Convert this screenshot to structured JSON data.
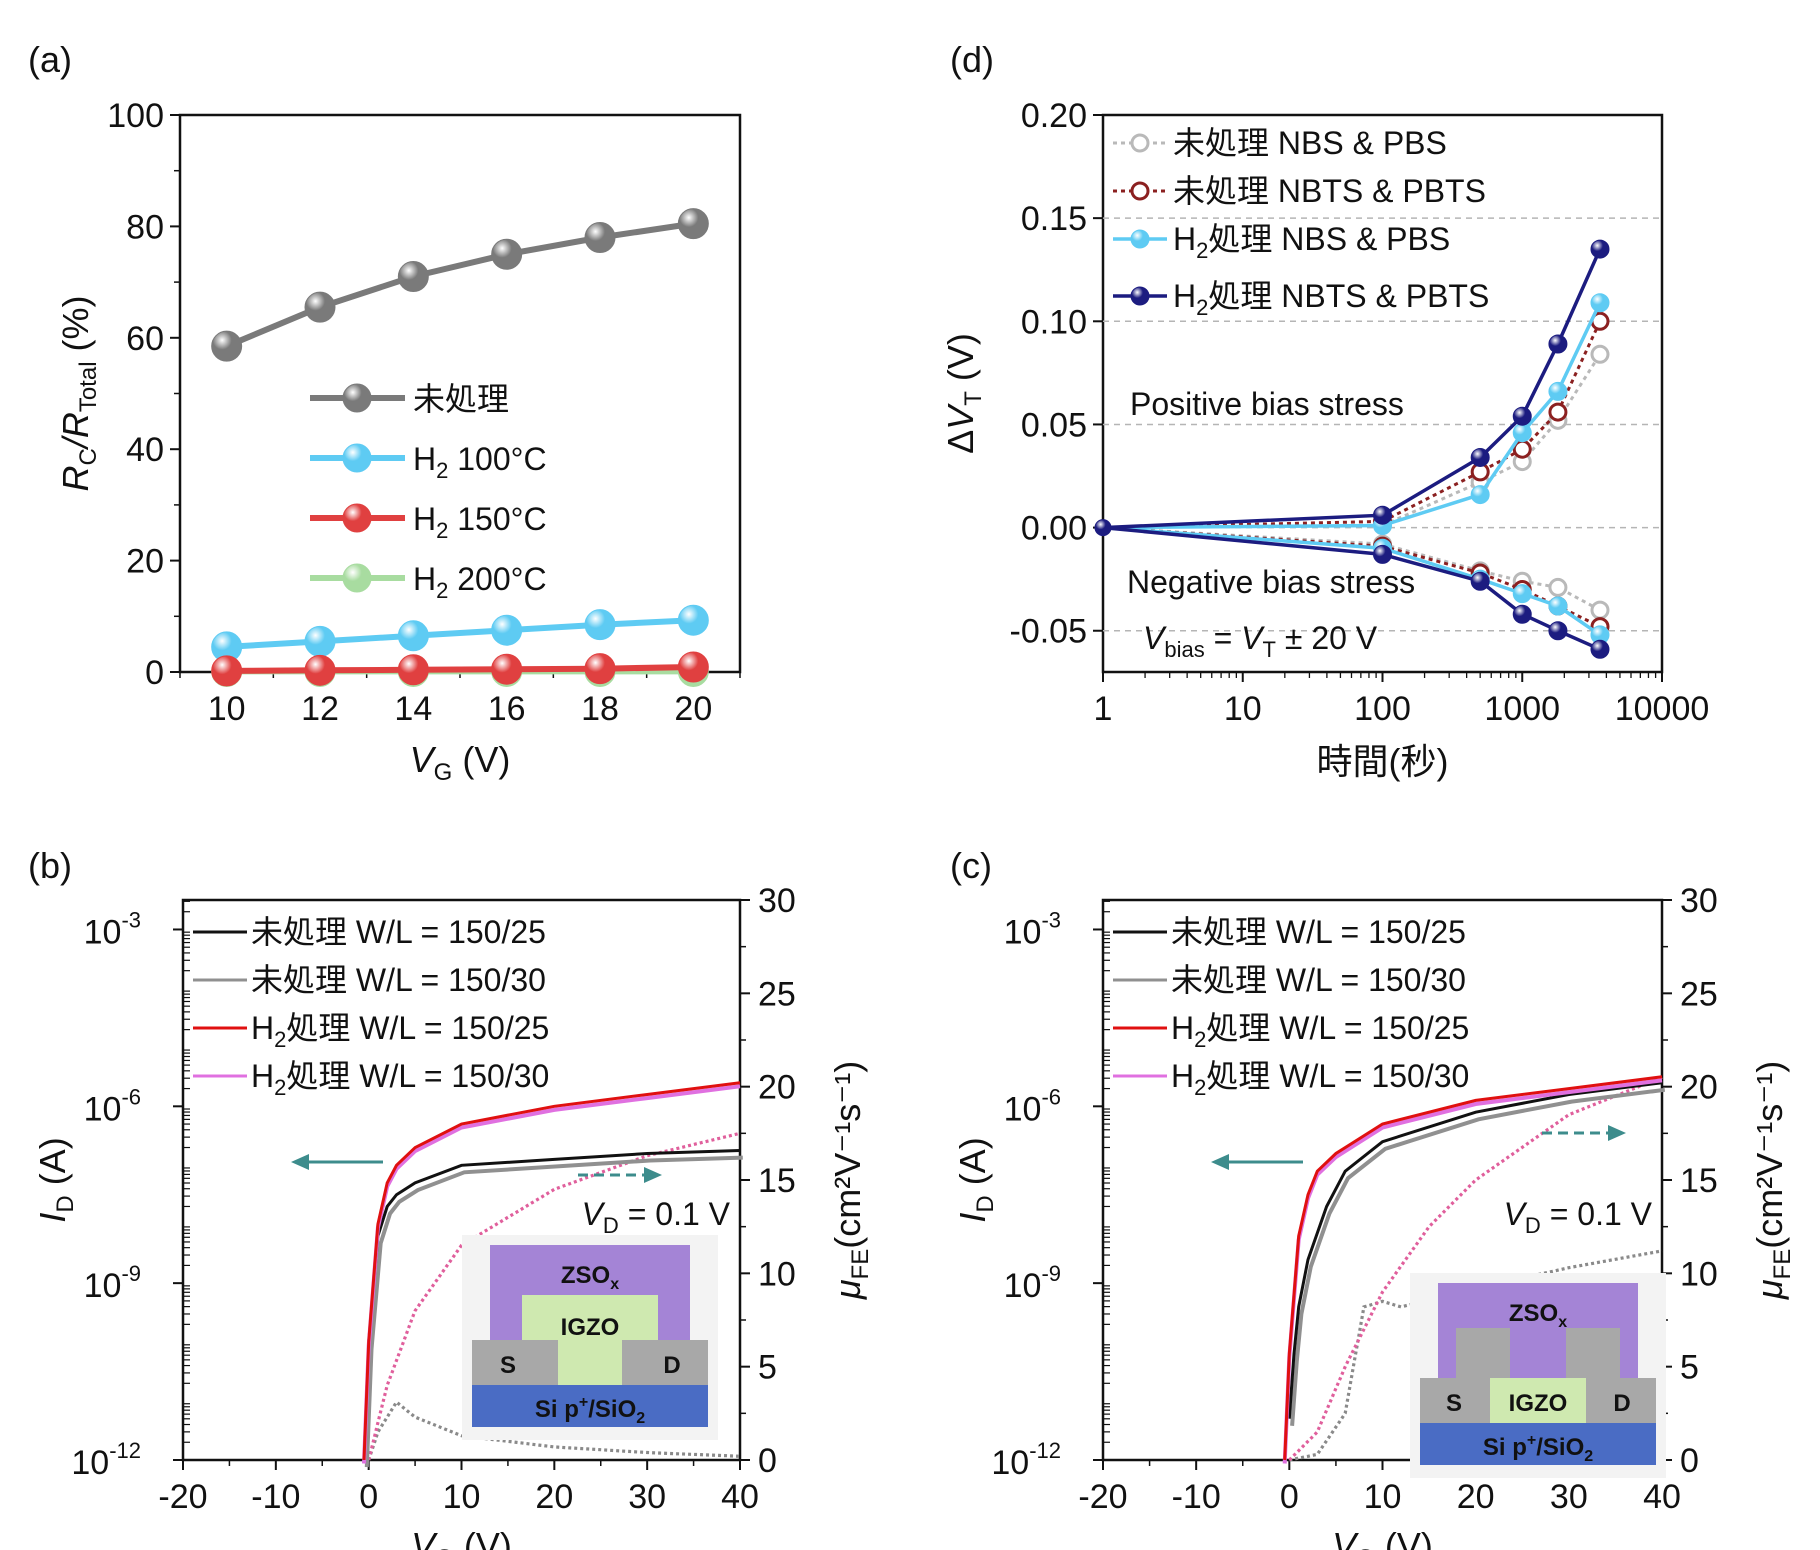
{
  "chart_data": [
    {
      "panel": "(a)",
      "type": "line",
      "ylabel": {
        "main": "R",
        "sub": "C",
        "slash": "/R",
        "sub2": "Total",
        "unit": " (%)"
      },
      "xlabel": {
        "main": "V",
        "sub": "G",
        "unit": " (V)"
      },
      "xlim": [
        9,
        21
      ],
      "ylim": [
        0,
        100
      ],
      "xticks": [
        "10",
        "12",
        "14",
        "16",
        "18",
        "20"
      ],
      "yticks": [
        "0",
        "20",
        "40",
        "60",
        "80",
        "100"
      ],
      "x": [
        10,
        12,
        14,
        16,
        18,
        20
      ],
      "series": [
        {
          "name": "未処理",
          "color": "#7a7a7a",
          "values": [
            58.5,
            65.5,
            71,
            75,
            78,
            80.5
          ]
        },
        {
          "name": "H2 100°C",
          "label_main": "H",
          "label_sub": "2",
          "label_rest": " 100°C",
          "color": "#5ecbf3",
          "values": [
            4.5,
            5.5,
            6.5,
            7.5,
            8.5,
            9.3
          ]
        },
        {
          "name": "H2 150°C",
          "label_main": "H",
          "label_sub": "2",
          "label_rest": " 150°C",
          "color": "#e04040",
          "values": [
            0.2,
            0.3,
            0.4,
            0.5,
            0.6,
            0.9
          ]
        },
        {
          "name": "H2 200°C",
          "label_main": "H",
          "label_sub": "2",
          "label_rest": " 200°C",
          "color": "#a8dca0",
          "values": [
            0.1,
            0.1,
            0.1,
            0.1,
            0.1,
            0.1
          ]
        }
      ],
      "legend_labels": [
        "未処理",
        "H",
        "2",
        " 100°C",
        " 150°C",
        " 200°C"
      ]
    },
    {
      "panel": "(d)",
      "type": "line",
      "ylabel": {
        "prefix": "ΔV",
        "sub": "T",
        "unit": " (V)"
      },
      "xlabel": "時間(秒)",
      "xscale": "log",
      "xlim": [
        1,
        10000
      ],
      "ylim": [
        -0.07,
        0.2
      ],
      "xticks": [
        "1",
        "10",
        "100",
        "1000",
        "10000"
      ],
      "yticks": [
        "-0.05",
        "0.00",
        "0.05",
        "0.10",
        "0.15",
        "0.20"
      ],
      "x": [
        1,
        100,
        500,
        1000,
        1800,
        3600
      ],
      "series": [
        {
          "name": "未処理 NBS & PBS",
          "color": "#b9b9b9",
          "style": "dotted-open",
          "positive": [
            0,
            0.001,
            0.022,
            0.032,
            0.052,
            0.084
          ],
          "negative": [
            0,
            -0.008,
            -0.021,
            -0.026,
            -0.029,
            -0.04
          ]
        },
        {
          "name": "未処理 NBTS & PBTS",
          "color": "#8b2020",
          "style": "dotted-open",
          "positive": [
            0,
            0.003,
            0.027,
            0.038,
            0.056,
            0.1
          ],
          "negative": [
            0,
            -0.009,
            -0.022,
            -0.03,
            -0.038,
            -0.048
          ]
        },
        {
          "name": "H2処理 NBS & PBS",
          "label_main": "H",
          "label_sub": "2",
          "label_rest": "処理 NBS & PBS",
          "color": "#5ecbf3",
          "style": "solid-filled",
          "positive": [
            0,
            0.001,
            0.016,
            0.046,
            0.066,
            0.109
          ],
          "negative": [
            0,
            -0.01,
            -0.025,
            -0.032,
            -0.038,
            -0.052
          ]
        },
        {
          "name": "H2処理 NBTS & PBTS",
          "label_main": "H",
          "label_sub": "2",
          "label_rest": "処理 NBTS & PBTS",
          "color": "#1c1c80",
          "style": "solid-filled",
          "positive": [
            0,
            0.006,
            0.034,
            0.054,
            0.089,
            0.135
          ],
          "negative": [
            0,
            -0.013,
            -0.026,
            -0.042,
            -0.05,
            -0.059
          ]
        }
      ],
      "annotations": {
        "positive": "Positive bias stress",
        "negative": "Negative bias stress",
        "vbias_v": "V",
        "vbias_sub": "bias",
        "vbias_eq": " = V",
        "vbias_sub2": "T",
        "vbias_rest": " ± 20 V"
      }
    },
    {
      "panel": "(b)",
      "type": "line",
      "ylabel_left": {
        "main": "I",
        "sub": "D",
        "unit": " (A)"
      },
      "ylabel_right": {
        "main": "μ",
        "sub": "FE",
        "unit": "(cm²V⁻¹s⁻¹)"
      },
      "xlabel": {
        "main": "V",
        "sub": "G",
        "unit": " (V)"
      },
      "xlim": [
        -20,
        40
      ],
      "ylim_log": [
        1e-12,
        0.01
      ],
      "ylim_right": [
        0,
        30
      ],
      "xticks": [
        "-20",
        "-10",
        "0",
        "10",
        "20",
        "30",
        "40"
      ],
      "yticks_left": [
        "10",
        "10",
        "10",
        "10"
      ],
      "yticks_left_exp": [
        "-12",
        "-9",
        "-6",
        "-3"
      ],
      "yticks_right": [
        "0",
        "5",
        "10",
        "15",
        "20",
        "25",
        "30"
      ],
      "legend": [
        {
          "name": "未処理 W/L = 150/25",
          "color": "#111111"
        },
        {
          "name": "未処理 W/L = 150/30",
          "color": "#909090"
        },
        {
          "name": "H2処理 W/L = 150/25",
          "label_main": "H",
          "label_sub": "2",
          "label_rest": "処理 W/L = 150/25",
          "color": "#e01010"
        },
        {
          "name": "H2処理 W/L = 150/30",
          "label_main": "H",
          "label_sub": "2",
          "label_rest": "処理 W/L = 150/30",
          "color": "#e070e0"
        }
      ],
      "id_curves": {
        "untreated": {
          "vg": [
            -0.5,
            0,
            1,
            2,
            3,
            5,
            10,
            20,
            30,
            40
          ],
          "log_id": [
            -12,
            -10,
            -8.2,
            -7.7,
            -7.5,
            -7.3,
            -7.0,
            -6.9,
            -6.8,
            -6.75
          ]
        },
        "h2": {
          "vg": [
            -0.5,
            0,
            1,
            2,
            3,
            5,
            10,
            20,
            30,
            40
          ],
          "log_id": [
            -12,
            -10,
            -8.0,
            -7.3,
            -7.0,
            -6.7,
            -6.3,
            -6.0,
            -5.8,
            -5.6
          ]
        }
      },
      "mobility": {
        "untreated": {
          "vg": [
            0,
            1,
            3,
            5,
            10,
            20,
            30,
            40
          ],
          "mu": [
            0,
            1.5,
            3.1,
            2.3,
            1.3,
            0.7,
            0.4,
            0.2
          ]
        },
        "h2": {
          "vg": [
            0,
            2,
            5,
            10,
            15,
            20,
            30,
            40
          ],
          "mu": [
            0,
            4,
            8,
            11.5,
            13,
            14.5,
            16.3,
            17.5
          ]
        }
      },
      "annotation_vd": {
        "v": "V",
        "sub": "D",
        "rest": " = 0.1 V"
      },
      "inset": {
        "top": "ZSO",
        "top_sub": "x",
        "mid": "IGZO",
        "s": "S",
        "d": "D",
        "bottom": "Si p",
        "bottom_sup": "+",
        "bottom_rest": "/SiO",
        "bottom_sub": "2"
      }
    },
    {
      "panel": "(c)",
      "type": "line",
      "ylabel_left": {
        "main": "I",
        "sub": "D",
        "unit": " (A)"
      },
      "ylabel_right": {
        "main": "μ",
        "sub": "FE",
        "unit": "(cm²V⁻¹s⁻¹)"
      },
      "xlabel": {
        "main": "V",
        "sub": "G",
        "unit": " (V)"
      },
      "xlim": [
        -20,
        40
      ],
      "ylim_log": [
        1e-12,
        0.01
      ],
      "ylim_right": [
        0,
        30
      ],
      "xticks": [
        "-20",
        "-10",
        "0",
        "10",
        "20",
        "30",
        "40"
      ],
      "yticks_left": [
        "10",
        "10",
        "10",
        "10"
      ],
      "yticks_left_exp": [
        "-12",
        "-9",
        "-6",
        "-3"
      ],
      "yticks_right": [
        "0",
        "5",
        "10",
        "15",
        "20",
        "25",
        "30"
      ],
      "legend": [
        {
          "name": "未処理 W/L = 150/25",
          "color": "#111111"
        },
        {
          "name": "未処理 W/L = 150/30",
          "color": "#909090"
        },
        {
          "name": "H2処理 W/L = 150/25",
          "label_main": "H",
          "label_sub": "2",
          "label_rest": "処理 W/L = 150/25",
          "color": "#e01010"
        },
        {
          "name": "H2処理 W/L = 150/30",
          "label_main": "H",
          "label_sub": "2",
          "label_rest": "処理 W/L = 150/30",
          "color": "#e070e0"
        }
      ],
      "id_curves": {
        "untreated": {
          "vg": [
            0,
            0.5,
            1,
            2,
            4,
            6,
            10,
            20,
            30,
            40
          ],
          "log_id": [
            -11.3,
            -10.2,
            -9.4,
            -8.6,
            -7.7,
            -7.1,
            -6.6,
            -6.1,
            -5.8,
            -5.6
          ]
        },
        "h2": {
          "vg": [
            -0.5,
            0,
            1,
            2,
            3,
            5,
            10,
            20,
            30,
            40
          ],
          "log_id": [
            -12,
            -10.2,
            -8.2,
            -7.5,
            -7.1,
            -6.8,
            -6.3,
            -5.9,
            -5.7,
            -5.5
          ]
        }
      },
      "mobility": {
        "untreated": {
          "vg": [
            0,
            3,
            6,
            8,
            10,
            12,
            20,
            30,
            40
          ],
          "mu": [
            0,
            0.3,
            2.5,
            8.2,
            8.5,
            8.2,
            9.2,
            10.3,
            11.2
          ]
        },
        "h2": {
          "vg": [
            0,
            3,
            6,
            10,
            15,
            20,
            30,
            40
          ],
          "mu": [
            0,
            1.5,
            5,
            9,
            12.5,
            15,
            18.5,
            20.5
          ]
        }
      },
      "annotation_vd": {
        "v": "V",
        "sub": "D",
        "rest": " = 0.1 V"
      },
      "inset": {
        "top": "ZSO",
        "top_sub": "x",
        "mid": "IGZO",
        "s": "S",
        "d": "D",
        "bottom": "Si p",
        "bottom_sup": "+",
        "bottom_rest": "/SiO",
        "bottom_sub": "2"
      }
    }
  ]
}
